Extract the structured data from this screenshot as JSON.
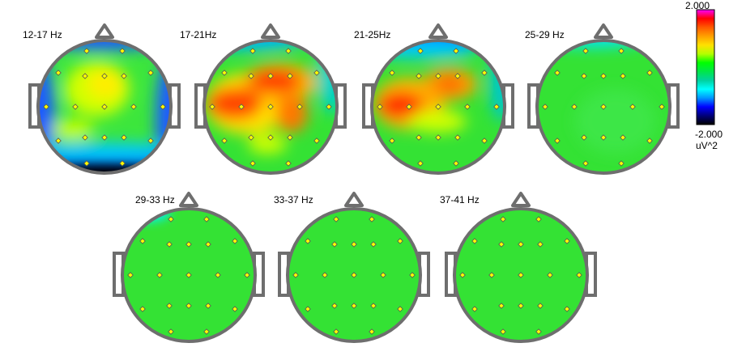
{
  "figure": {
    "band_maps": [
      {
        "label": "12-17 Hz",
        "pattern": "low-edges"
      },
      {
        "label": "17-21Hz",
        "pattern": "high-left"
      },
      {
        "label": "21-25Hz",
        "pattern": "high-left-strong"
      },
      {
        "label": "25-29 Hz",
        "pattern": "neutral-cyan-top"
      },
      {
        "label": "29-33 Hz",
        "pattern": "neutral-cyan-topleft"
      },
      {
        "label": "33-37 Hz",
        "pattern": "neutral"
      },
      {
        "label": "37-41 Hz",
        "pattern": "neutral"
      }
    ],
    "color_scale": {
      "max_label": "2.000",
      "min_label": "-2.000",
      "unit_label": "uV^2",
      "colors": [
        "#ff00ff",
        "#ff0000",
        "#ff5a00",
        "#ffa000",
        "#ffe100",
        "#b4ff00",
        "#00ff00",
        "#00e64b",
        "#00d2a0",
        "#00ffff",
        "#0096ff",
        "#0000ff",
        "#000078",
        "#000000"
      ]
    },
    "colors": {
      "head_outline": "#6e6e6e",
      "neutral_fill": "#2edc2e",
      "electrode_fill": "#ffff00"
    }
  }
}
